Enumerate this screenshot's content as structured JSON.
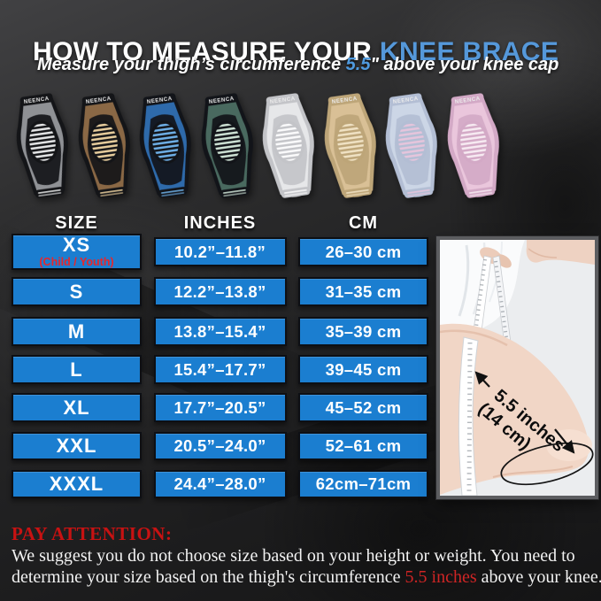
{
  "title": {
    "prefix": "HOW TO MEASURE YOUR ",
    "highlight": "KNEE BRACE"
  },
  "subtitle": {
    "before": "Measure your thigh’s circumference ",
    "value": "5.5",
    "unit": "\"",
    "after": " above your knee cap"
  },
  "brand": "NEENCA",
  "braces": [
    {
      "name": "gray-black",
      "body": "#8f9195",
      "frame": "#141518",
      "pad": "#e6e7e8"
    },
    {
      "name": "brown-black",
      "body": "#8a6845",
      "frame": "#141518",
      "pad": "#e9cf9e"
    },
    {
      "name": "blue-black",
      "body": "#2e6aab",
      "frame": "#121419",
      "pad": "#6fb0e8"
    },
    {
      "name": "teal-black",
      "body": "#49695f",
      "frame": "#121419",
      "pad": "#cfe3d6"
    },
    {
      "name": "white",
      "body": "#e6e7e9",
      "frame": "#c3c4c8",
      "pad": "#fbfbfc"
    },
    {
      "name": "beige",
      "body": "#d9c096",
      "frame": "#bda578",
      "pad": "#f0e2c4"
    },
    {
      "name": "lavender-pink",
      "body": "#ccd6e6",
      "frame": "#b3bed4",
      "pad": "#e6c5dc"
    },
    {
      "name": "pink-white",
      "body": "#eac6dc",
      "frame": "#d3a9c6",
      "pad": "#f7ebf2"
    }
  ],
  "table": {
    "headers": [
      "SIZE",
      "INCHES",
      "CM"
    ],
    "cell_color": "#1b7ed0",
    "rows": [
      {
        "size": "XS",
        "note": "(Child / Youth)",
        "inches": "10.2”–11.8”",
        "cm": "26–30 cm"
      },
      {
        "size": "S",
        "inches": "12.2”–13.8”",
        "cm": "31–35 cm"
      },
      {
        "size": "M",
        "inches": "13.8”–15.4”",
        "cm": "35–39 cm"
      },
      {
        "size": "L",
        "inches": "15.4”–17.7”",
        "cm": "39–45 cm"
      },
      {
        "size": "XL",
        "inches": "17.7”–20.5”",
        "cm": "45–52 cm"
      },
      {
        "size": "XXL",
        "inches": "20.5”–24.0”",
        "cm": "52–61 cm"
      },
      {
        "size": "XXXL",
        "inches": "24.4”–28.0”",
        "cm": "62cm–71cm"
      }
    ]
  },
  "photo": {
    "annotation_line1": "5.5 inches",
    "annotation_line2": "(14 cm)"
  },
  "footer": {
    "heading": "PAY ATTENTION:",
    "line1": "We suggest you do not choose size based on your height or weight. You need to",
    "line2_before": "determine your size based on the thigh's circumference ",
    "line2_highlight": "5.5 inches",
    "line2_after": " above your knee."
  },
  "colors": {
    "accent_blue": "#5598da",
    "table_blue": "#1b7ed0",
    "alert_red": "#c81212"
  }
}
